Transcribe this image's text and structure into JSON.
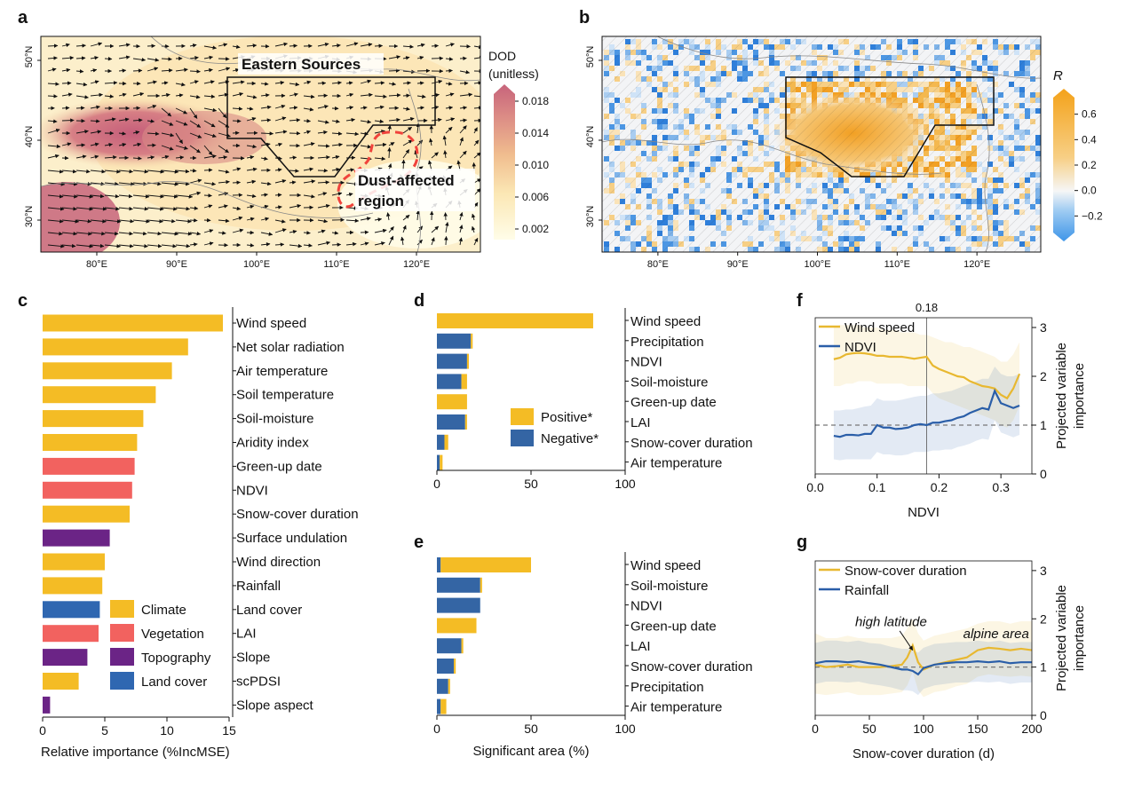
{
  "panel_letters": [
    "a",
    "b",
    "c",
    "d",
    "e",
    "f",
    "g"
  ],
  "colors": {
    "climate": "#F4BC25",
    "vegetation": "#F2625F",
    "topography": "#6B2486",
    "land_cover": "#2F67B1",
    "positive": "#F4BC25",
    "negative": "#3465A4",
    "wind_line": "#E8B830",
    "ndvi_line": "#2A5EA8"
  },
  "chart_data": [
    {
      "id": "a",
      "type": "heatmap",
      "title": "",
      "map_labels": {
        "box": "Eastern Sources",
        "region_line1": "Dust-affected",
        "region_line2": "region"
      },
      "x_ticks": [
        "80°E",
        "90°E",
        "100°E",
        "110°E",
        "120°E"
      ],
      "x_tick_values": [
        80,
        90,
        100,
        110,
        120
      ],
      "y_ticks": [
        "30°N",
        "40°N",
        "50°N"
      ],
      "y_tick_values": [
        30,
        40,
        50
      ],
      "xlim": [
        73,
        128
      ],
      "ylim": [
        26,
        53
      ],
      "colorbar": {
        "label_line1": "DOD",
        "label_line2": "(unitless)",
        "ticks": [
          "0.018",
          "0.014",
          "0.010",
          "0.006",
          "0.002"
        ],
        "tick_values": [
          0.018,
          0.014,
          0.01,
          0.006,
          0.002
        ],
        "range": [
          0,
          0.02
        ]
      }
    },
    {
      "id": "b",
      "type": "heatmap",
      "x_ticks": [
        "80°E",
        "90°E",
        "100°E",
        "110°E",
        "120°E"
      ],
      "x_tick_values": [
        80,
        90,
        100,
        110,
        120
      ],
      "y_ticks": [
        "30°N",
        "40°N",
        "50°N"
      ],
      "y_tick_values": [
        30,
        40,
        50
      ],
      "xlim": [
        73,
        128
      ],
      "ylim": [
        26,
        53
      ],
      "colorbar": {
        "label": "R",
        "ticks": [
          "0.6",
          "0.4",
          "0.2",
          "0.0",
          "−0.2"
        ],
        "tick_values": [
          0.6,
          0.4,
          0.2,
          0.0,
          -0.2
        ],
        "range": [
          -0.4,
          0.8
        ]
      }
    },
    {
      "id": "c",
      "type": "bar",
      "orientation": "horizontal",
      "xlabel": "Relative importance (%IncMSE)",
      "xlim": [
        0,
        15
      ],
      "x_ticks": [
        "0",
        "5",
        "10",
        "15"
      ],
      "x_tick_values": [
        0,
        5,
        10,
        15
      ],
      "categories": [
        "Wind speed",
        "Net solar radiation",
        "Air temperature",
        "Soil temperature",
        "Soil-moisture",
        "Aridity index",
        "Green-up date",
        "NDVI",
        "Snow-cover duration",
        "Surface undulation",
        "Wind direction",
        "Rainfall",
        "Land cover",
        "LAI",
        "Slope",
        "scPDSI",
        "Slope aspect"
      ],
      "values": [
        14.5,
        11.7,
        10.4,
        9.1,
        8.1,
        7.6,
        7.4,
        7.2,
        7.0,
        5.4,
        5.0,
        4.8,
        4.6,
        4.5,
        3.6,
        2.9,
        0.6
      ],
      "groups": [
        "climate",
        "climate",
        "climate",
        "climate",
        "climate",
        "climate",
        "vegetation",
        "vegetation",
        "climate",
        "topography",
        "climate",
        "climate",
        "land_cover",
        "vegetation",
        "topography",
        "climate",
        "topography"
      ],
      "legend": [
        {
          "key": "climate",
          "label": "Climate"
        },
        {
          "key": "vegetation",
          "label": "Vegetation"
        },
        {
          "key": "topography",
          "label": "Topography"
        },
        {
          "key": "land_cover",
          "label": "Land cover"
        }
      ]
    },
    {
      "id": "d",
      "type": "bar",
      "orientation": "horizontal",
      "stacked": true,
      "xlabel": "",
      "xlim": [
        0,
        100
      ],
      "x_ticks": [
        "0",
        "50",
        "100"
      ],
      "x_tick_values": [
        0,
        50,
        100
      ],
      "categories": [
        "Wind speed",
        "Precipitation",
        "NDVI",
        "Soil-moisture",
        "Green-up date",
        "LAI",
        "Snow-cover duration",
        "Air temperature"
      ],
      "series": [
        {
          "name": "Negative*",
          "key": "negative",
          "values": [
            0,
            18,
            16,
            13,
            0,
            15,
            4,
            1.5
          ]
        },
        {
          "name": "Positive*",
          "key": "positive",
          "values": [
            83,
            1,
            1,
            3,
            16,
            1,
            2,
            1.5
          ]
        }
      ],
      "legend": [
        {
          "key": "positive",
          "label": "Positive*"
        },
        {
          "key": "negative",
          "label": "Negative*"
        }
      ]
    },
    {
      "id": "e",
      "type": "bar",
      "orientation": "horizontal",
      "stacked": true,
      "xlabel": "Significant area (%)",
      "xlim": [
        0,
        100
      ],
      "x_ticks": [
        "0",
        "50",
        "100"
      ],
      "x_tick_values": [
        0,
        50,
        100
      ],
      "categories": [
        "Wind speed",
        "Soil-moisture",
        "NDVI",
        "Green-up date",
        "LAI",
        "Snow-cover duration",
        "Precipitation",
        "Air temperature"
      ],
      "series": [
        {
          "name": "Negative*",
          "key": "negative",
          "values": [
            2,
            23,
            23,
            0,
            13,
            9,
            6,
            2
          ]
        },
        {
          "name": "Positive*",
          "key": "positive",
          "values": [
            48,
            1,
            0,
            21,
            1,
            1,
            1,
            3
          ]
        }
      ]
    },
    {
      "id": "f",
      "type": "line",
      "xlabel": "NDVI",
      "ylabel_line1": "Projected variable",
      "ylabel_line2": "importance",
      "xlim": [
        0,
        0.35
      ],
      "ylim": [
        0,
        3.2
      ],
      "x_ticks": [
        "0.0",
        "0.1",
        "0.2",
        "0.3"
      ],
      "x_tick_values": [
        0,
        0.1,
        0.2,
        0.3
      ],
      "y_ticks": [
        "0",
        "1",
        "2",
        "3"
      ],
      "y_tick_values": [
        0,
        1,
        2,
        3
      ],
      "reference_line": 1,
      "vline": 0.18,
      "vline_label": "0.18",
      "x": [
        0.03,
        0.04,
        0.05,
        0.06,
        0.07,
        0.08,
        0.09,
        0.1,
        0.11,
        0.12,
        0.13,
        0.14,
        0.15,
        0.16,
        0.17,
        0.18,
        0.19,
        0.2,
        0.21,
        0.22,
        0.23,
        0.24,
        0.25,
        0.26,
        0.27,
        0.28,
        0.29,
        0.3,
        0.31,
        0.32,
        0.33
      ],
      "series": [
        {
          "name": "Wind speed",
          "key": "wind_line",
          "values": [
            2.35,
            2.38,
            2.45,
            2.47,
            2.48,
            2.47,
            2.45,
            2.42,
            2.42,
            2.4,
            2.4,
            2.4,
            2.38,
            2.36,
            2.38,
            2.4,
            2.22,
            2.15,
            2.1,
            2.05,
            2.0,
            1.98,
            1.9,
            1.85,
            1.8,
            1.78,
            1.75,
            1.62,
            1.55,
            1.75,
            2.05
          ],
          "upper": [
            3.0,
            3.05,
            3.05,
            3.05,
            3.05,
            3.0,
            3.0,
            3.0,
            2.95,
            2.95,
            2.95,
            2.9,
            2.9,
            2.9,
            2.85,
            2.85,
            2.8,
            2.75,
            2.7,
            2.7,
            2.65,
            2.6,
            2.6,
            2.55,
            2.5,
            2.45,
            2.4,
            2.3,
            2.3,
            2.45,
            2.7
          ],
          "lower": [
            1.8,
            1.8,
            1.85,
            1.85,
            1.9,
            1.9,
            1.9,
            1.85,
            1.85,
            1.85,
            1.85,
            1.85,
            1.8,
            1.8,
            1.8,
            1.8,
            1.65,
            1.55,
            1.5,
            1.45,
            1.4,
            1.35,
            1.3,
            1.25,
            1.2,
            1.15,
            1.1,
            1.0,
            0.95,
            1.1,
            1.4
          ]
        },
        {
          "name": "NDVI",
          "key": "ndvi_line",
          "values": [
            0.78,
            0.76,
            0.8,
            0.8,
            0.79,
            0.82,
            0.82,
            1.0,
            0.95,
            0.95,
            0.92,
            0.93,
            0.95,
            1.0,
            1.02,
            1.0,
            1.05,
            1.05,
            1.08,
            1.1,
            1.15,
            1.18,
            1.25,
            1.3,
            1.35,
            1.32,
            1.7,
            1.45,
            1.4,
            1.35,
            1.4
          ],
          "upper": [
            1.3,
            1.3,
            1.32,
            1.32,
            1.35,
            1.38,
            1.4,
            1.55,
            1.5,
            1.5,
            1.5,
            1.52,
            1.55,
            1.58,
            1.6,
            1.6,
            1.65,
            1.65,
            1.68,
            1.7,
            1.75,
            1.8,
            1.85,
            1.9,
            1.95,
            1.95,
            2.2,
            2.05,
            2.0,
            2.0,
            2.05
          ],
          "lower": [
            0.3,
            0.28,
            0.3,
            0.3,
            0.3,
            0.3,
            0.3,
            0.45,
            0.4,
            0.4,
            0.38,
            0.38,
            0.4,
            0.45,
            0.45,
            0.45,
            0.48,
            0.48,
            0.5,
            0.5,
            0.55,
            0.58,
            0.62,
            0.68,
            0.72,
            0.7,
            1.1,
            0.85,
            0.8,
            0.75,
            0.8
          ]
        }
      ],
      "legend": [
        {
          "key": "wind_line",
          "label": "Wind speed"
        },
        {
          "key": "ndvi_line",
          "label": "NDVI"
        }
      ]
    },
    {
      "id": "g",
      "type": "line",
      "xlabel": "Snow-cover duration (d)",
      "ylabel_line1": "Projected variable",
      "ylabel_line2": "importance",
      "xlim": [
        0,
        200
      ],
      "ylim": [
        0,
        3.2
      ],
      "x_ticks": [
        "0",
        "50",
        "100",
        "150",
        "200"
      ],
      "x_tick_values": [
        0,
        50,
        100,
        150,
        200
      ],
      "y_ticks": [
        "0",
        "1",
        "2",
        "3"
      ],
      "y_tick_values": [
        0,
        1,
        2,
        3
      ],
      "reference_line": 1,
      "annotations": [
        {
          "text": "high latitude",
          "x": 70,
          "y": 1.85
        },
        {
          "text": "alpine area",
          "x": 167,
          "y": 1.6
        }
      ],
      "x": [
        0,
        10,
        20,
        30,
        40,
        50,
        60,
        70,
        80,
        85,
        90,
        95,
        100,
        110,
        120,
        130,
        140,
        150,
        160,
        170,
        180,
        190,
        200
      ],
      "series": [
        {
          "name": "Snow-cover duration",
          "key": "wind_line",
          "values": [
            1.05,
            1.0,
            1.02,
            1.05,
            1.0,
            1.0,
            1.0,
            1.02,
            1.05,
            1.2,
            1.45,
            1.1,
            0.95,
            1.05,
            1.1,
            1.15,
            1.2,
            1.35,
            1.4,
            1.38,
            1.35,
            1.38,
            1.35
          ],
          "upper": [
            1.7,
            1.6,
            1.6,
            1.65,
            1.6,
            1.6,
            1.6,
            1.6,
            1.65,
            1.8,
            2.0,
            1.7,
            1.55,
            1.65,
            1.7,
            1.75,
            1.8,
            1.9,
            1.95,
            1.95,
            1.9,
            1.95,
            1.95
          ],
          "lower": [
            0.45,
            0.42,
            0.45,
            0.48,
            0.42,
            0.42,
            0.42,
            0.45,
            0.48,
            0.62,
            0.9,
            0.52,
            0.38,
            0.48,
            0.52,
            0.6,
            0.65,
            0.8,
            0.85,
            0.82,
            0.8,
            0.82,
            0.8
          ]
        },
        {
          "name": "Rainfall",
          "key": "ndvi_line",
          "values": [
            1.08,
            1.12,
            1.12,
            1.1,
            1.12,
            1.08,
            1.05,
            1.0,
            0.95,
            0.95,
            0.92,
            0.85,
            0.98,
            1.05,
            1.08,
            1.1,
            1.1,
            1.12,
            1.1,
            1.12,
            1.08,
            1.1,
            1.1
          ],
          "upper": [
            1.5,
            1.55,
            1.55,
            1.52,
            1.55,
            1.5,
            1.48,
            1.42,
            1.38,
            1.38,
            1.35,
            1.3,
            1.4,
            1.48,
            1.5,
            1.52,
            1.52,
            1.55,
            1.52,
            1.55,
            1.5,
            1.52,
            1.52
          ],
          "lower": [
            0.65,
            0.7,
            0.7,
            0.68,
            0.7,
            0.65,
            0.62,
            0.58,
            0.52,
            0.52,
            0.5,
            0.42,
            0.55,
            0.62,
            0.65,
            0.68,
            0.68,
            0.7,
            0.68,
            0.7,
            0.65,
            0.68,
            0.68
          ]
        }
      ],
      "legend": [
        {
          "key": "wind_line",
          "label": "Snow-cover duration"
        },
        {
          "key": "ndvi_line",
          "label": "Rainfall"
        }
      ]
    }
  ]
}
